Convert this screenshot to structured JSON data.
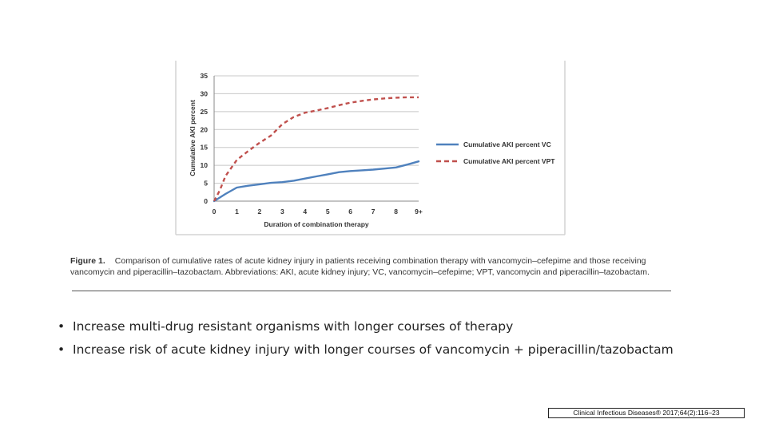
{
  "chart_data": {
    "type": "line",
    "title": "",
    "xlabel": "Duration of combination therapy",
    "ylabel": "Cumulative AKI percent",
    "ylim": [
      0,
      35
    ],
    "yticks": [
      "0",
      "5",
      "10",
      "15",
      "20",
      "25",
      "30",
      "35"
    ],
    "x_categories": [
      "0",
      "1",
      "2",
      "3",
      "4",
      "5",
      "6",
      "7",
      "8",
      "9+"
    ],
    "grid": "horizontal",
    "legend_position": "right",
    "series": [
      {
        "name": "Cumulative AKI percent VC",
        "color": "#4f81bd",
        "style": "solid",
        "points": [
          [
            0,
            0
          ],
          [
            0.5,
            2
          ],
          [
            1,
            3.8
          ],
          [
            1.5,
            4.3
          ],
          [
            2,
            4.7
          ],
          [
            2.5,
            5.1
          ],
          [
            3,
            5.3
          ],
          [
            3.5,
            5.7
          ],
          [
            4,
            6.3
          ],
          [
            4.5,
            6.9
          ],
          [
            5,
            7.5
          ],
          [
            5.5,
            8.1
          ],
          [
            6,
            8.4
          ],
          [
            6.5,
            8.6
          ],
          [
            7,
            8.8
          ],
          [
            7.5,
            9.1
          ],
          [
            8,
            9.4
          ],
          [
            8.5,
            10.2
          ],
          [
            9,
            11.1
          ]
        ]
      },
      {
        "name": "Cumulative AKI percent VPT",
        "color": "#c0504d",
        "style": "dashed",
        "points": [
          [
            0,
            0
          ],
          [
            0.25,
            3
          ],
          [
            0.5,
            7
          ],
          [
            1,
            11.5
          ],
          [
            1.5,
            14
          ],
          [
            2,
            16.3
          ],
          [
            2.5,
            18.3
          ],
          [
            3,
            21.5
          ],
          [
            3.5,
            23.5
          ],
          [
            4,
            24.7
          ],
          [
            4.5,
            25.3
          ],
          [
            5,
            26
          ],
          [
            5.5,
            26.8
          ],
          [
            6,
            27.5
          ],
          [
            6.5,
            28
          ],
          [
            7,
            28.4
          ],
          [
            7.5,
            28.7
          ],
          [
            8,
            28.9
          ],
          [
            8.5,
            29
          ],
          [
            9,
            29
          ]
        ]
      }
    ]
  },
  "caption": {
    "label": "Figure 1.",
    "text": "Comparison of cumulative rates of acute kidney injury in patients receiving combination therapy with vancomycin–cefepime and those receiving vancomycin and piperacillin–tazobactam. Abbreviations: AKI, acute kidney injury; VC, vancomycin–cefepime; VPT, vancomycin and piperacillin–tazobactam."
  },
  "bullets": [
    "Increase multi-drug resistant organisms with longer courses of therapy",
    "Increase risk of acute kidney injury with longer courses of vancomycin + piperacillin/tazobactam"
  ],
  "citation": "Clinical Infectious Diseases® 2017;64(2):116–23"
}
